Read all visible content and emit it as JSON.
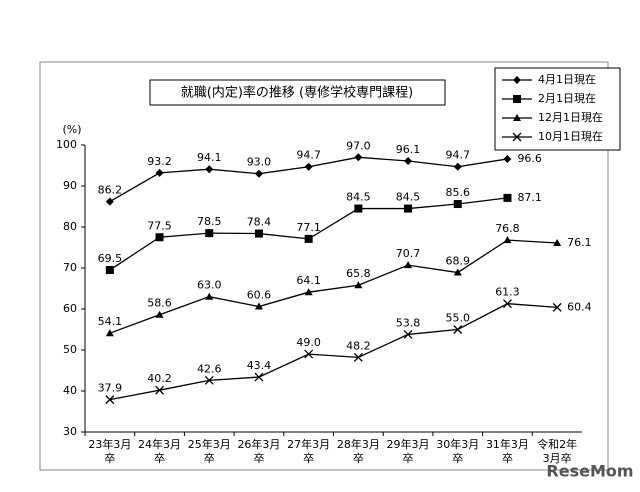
{
  "chart_data": {
    "type": "line",
    "title": "就職(内定)率の推移 (専修学校専門課程)",
    "y_axis_label": "(%)",
    "watermark": "ReseMom",
    "categories": [
      "23年3月卒",
      "24年3月卒",
      "25年3月卒",
      "26年3月卒",
      "27年3月卒",
      "28年3月卒",
      "29年3月卒",
      "30年3月卒",
      "31年3月卒",
      "令和2年3月卒"
    ],
    "ylim": [
      30,
      100
    ],
    "yticks": [
      30,
      40,
      50,
      60,
      70,
      80,
      90,
      100
    ],
    "grid": false,
    "legend": "top-right",
    "series": [
      {
        "name": "4月1日現在",
        "color": "#000000",
        "marker": "diamond",
        "values": [
          86.2,
          93.2,
          94.1,
          93.0,
          94.7,
          97.0,
          96.1,
          94.7,
          96.6,
          null
        ],
        "value_labels": [
          "86.2",
          "93.2",
          "94.1",
          "93.0",
          "94.7",
          "97.0",
          "96.1",
          "94.7",
          "96.6",
          null
        ]
      },
      {
        "name": "2月1日現在",
        "color": "#000000",
        "marker": "square",
        "values": [
          69.5,
          77.5,
          78.5,
          78.4,
          77.1,
          84.5,
          84.5,
          85.6,
          87.1,
          null
        ],
        "value_labels": [
          "69.5",
          "77.5",
          "78.5",
          "78.4",
          "77.1",
          "84.5",
          "84.5",
          "85.6",
          "87.1",
          null
        ]
      },
      {
        "name": "12月1日現在",
        "color": "#000000",
        "marker": "triangle",
        "values": [
          54.1,
          58.6,
          63.0,
          60.6,
          64.1,
          65.8,
          70.7,
          68.9,
          76.8,
          76.1
        ],
        "value_labels": [
          "54.1",
          "58.6",
          "63.0",
          "60.6",
          "64.1",
          "65.8",
          "70.7",
          "68.9",
          "76.8",
          "76.1"
        ]
      },
      {
        "name": "10月1日現在",
        "color": "#000000",
        "marker": "x",
        "values": [
          37.9,
          40.2,
          42.6,
          43.4,
          49.0,
          48.2,
          53.8,
          55.0,
          61.3,
          60.4
        ],
        "value_labels": [
          "37.9",
          "40.2",
          "42.6",
          "43.4",
          "49.0",
          "48.2",
          "53.8",
          "55.0",
          "61.3",
          "60.4"
        ]
      }
    ]
  }
}
